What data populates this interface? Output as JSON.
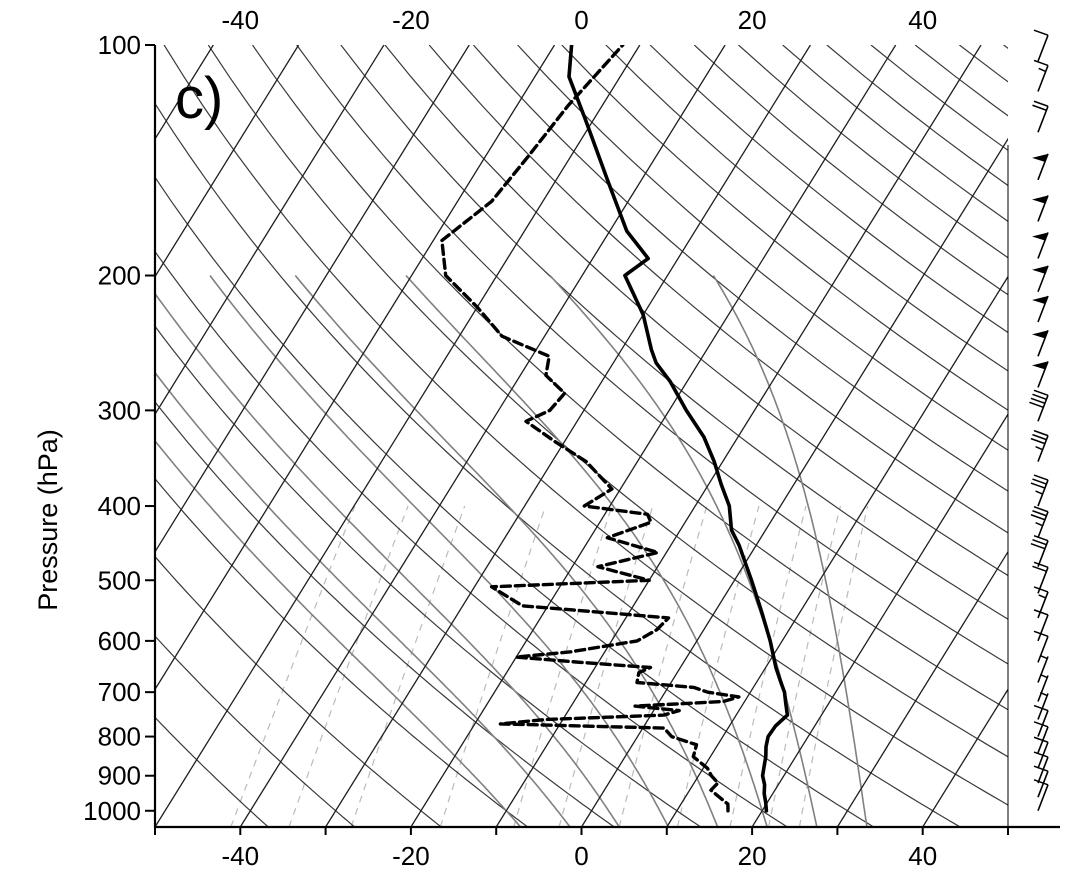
{
  "panel_label": "c)",
  "colors": {
    "temperature": "#000000",
    "dewpoint": "#000000",
    "isotherms": "#222222",
    "dry_adiabats": "#555555",
    "moist_adiabats": "#777777",
    "mixing_ratio": "#bbbbbb",
    "axes": "#000000",
    "wind_barbs": "#000000"
  },
  "chart_data": {
    "type": "line",
    "subtype": "skew-T log-P sounding",
    "title": "",
    "xlabel": "",
    "ylabel": "Pressure (hPa)",
    "xlim": [
      -50,
      50
    ],
    "ylim": [
      1050,
      100
    ],
    "yscale": "log",
    "x_ticks": [
      -40,
      -20,
      0,
      20,
      40
    ],
    "x_tick_labels": [
      "-40",
      "-20",
      "0",
      "20",
      "40"
    ],
    "y_ticks": [
      100,
      200,
      300,
      400,
      500,
      600,
      700,
      800,
      900,
      1000
    ],
    "y_tick_labels": [
      "100",
      "200",
      "300",
      "400",
      "500",
      "600",
      "700",
      "800",
      "900",
      "1000"
    ],
    "grid": true,
    "background_lines": [
      "isotherms",
      "dry adiabats",
      "moist adiabats",
      "mixing ratio lines"
    ],
    "series": [
      {
        "style": "solid",
        "points": [
          [
            1000,
            20.5
          ],
          [
            975,
            19.8
          ],
          [
            950,
            19.0
          ],
          [
            925,
            18.4
          ],
          [
            900,
            17.5
          ],
          [
            875,
            17.0
          ],
          [
            850,
            16.5
          ],
          [
            825,
            15.8
          ],
          [
            800,
            15.3
          ],
          [
            775,
            15.4
          ],
          [
            750,
            16.0
          ],
          [
            725,
            15.0
          ],
          [
            700,
            14.0
          ],
          [
            675,
            12.6
          ],
          [
            650,
            11.2
          ],
          [
            600,
            8.6
          ],
          [
            550,
            5.5
          ],
          [
            500,
            2.0
          ],
          [
            450,
            -2.0
          ],
          [
            430,
            -4.0
          ],
          [
            400,
            -6.0
          ],
          [
            375,
            -8.5
          ],
          [
            350,
            -11.0
          ],
          [
            325,
            -14.0
          ],
          [
            300,
            -18.0
          ],
          [
            275,
            -22.0
          ],
          [
            260,
            -25.0
          ],
          [
            250,
            -26.5
          ],
          [
            225,
            -30.0
          ],
          [
            200,
            -35.0
          ],
          [
            190,
            -33.5
          ],
          [
            175,
            -38.0
          ],
          [
            150,
            -44.0
          ],
          [
            125,
            -51.0
          ],
          [
            110,
            -56.0
          ],
          [
            100,
            -58.0
          ]
        ]
      },
      {
        "style": "dashed",
        "points": [
          [
            1000,
            16.0
          ],
          [
            980,
            15.5
          ],
          [
            960,
            14.0
          ],
          [
            940,
            12.5
          ],
          [
            920,
            12.8
          ],
          [
            900,
            11.5
          ],
          [
            880,
            10.5
          ],
          [
            850,
            8.0
          ],
          [
            820,
            7.5
          ],
          [
            800,
            4.0
          ],
          [
            780,
            2.5
          ],
          [
            770,
            -17.0
          ],
          [
            760,
            -12.0
          ],
          [
            750,
            1.5
          ],
          [
            740,
            3.0
          ],
          [
            730,
            -2.5
          ],
          [
            720,
            7.5
          ],
          [
            710,
            9.0
          ],
          [
            700,
            5.0
          ],
          [
            690,
            3.0
          ],
          [
            680,
            -4.0
          ],
          [
            660,
            -4.5
          ],
          [
            650,
            -3.5
          ],
          [
            640,
            -12.0
          ],
          [
            630,
            -20.0
          ],
          [
            620,
            -14.0
          ],
          [
            600,
            -7.0
          ],
          [
            580,
            -5.5
          ],
          [
            560,
            -5.0
          ],
          [
            540,
            -23.0
          ],
          [
            510,
            -28.0
          ],
          [
            500,
            -10.0
          ],
          [
            480,
            -17.0
          ],
          [
            460,
            -11.0
          ],
          [
            440,
            -18.0
          ],
          [
            420,
            -14.0
          ],
          [
            410,
            -15.0
          ],
          [
            400,
            -23.0
          ],
          [
            380,
            -21.0
          ],
          [
            350,
            -26.0
          ],
          [
            330,
            -31.0
          ],
          [
            310,
            -36.0
          ],
          [
            300,
            -34.0
          ],
          [
            285,
            -33.5
          ],
          [
            270,
            -37.0
          ],
          [
            255,
            -38.0
          ],
          [
            240,
            -45.0
          ],
          [
            220,
            -50.0
          ],
          [
            200,
            -56.0
          ],
          [
            180,
            -59.0
          ],
          [
            160,
            -56.0
          ],
          [
            140,
            -55.0
          ],
          [
            120,
            -54.0
          ],
          [
            100,
            -52.0
          ]
        ]
      }
    ],
    "wind_barbs": [
      {
        "p": 1000,
        "speed_kt": 10
      },
      {
        "p": 960,
        "speed_kt": 10
      },
      {
        "p": 920,
        "speed_kt": 10
      },
      {
        "p": 880,
        "speed_kt": 10
      },
      {
        "p": 840,
        "speed_kt": 10
      },
      {
        "p": 800,
        "speed_kt": 10
      },
      {
        "p": 760,
        "speed_kt": 5
      },
      {
        "p": 720,
        "speed_kt": 5
      },
      {
        "p": 680,
        "speed_kt": 5
      },
      {
        "p": 640,
        "speed_kt": 10
      },
      {
        "p": 600,
        "speed_kt": 10
      },
      {
        "p": 560,
        "speed_kt": 15
      },
      {
        "p": 520,
        "speed_kt": 20
      },
      {
        "p": 480,
        "speed_kt": 30
      },
      {
        "p": 440,
        "speed_kt": 35
      },
      {
        "p": 400,
        "speed_kt": 35
      },
      {
        "p": 350,
        "speed_kt": 35
      },
      {
        "p": 310,
        "speed_kt": 40
      },
      {
        "p": 280,
        "speed_kt": 50
      },
      {
        "p": 255,
        "speed_kt": 50
      },
      {
        "p": 230,
        "speed_kt": 50
      },
      {
        "p": 210,
        "speed_kt": 50
      },
      {
        "p": 190,
        "speed_kt": 50
      },
      {
        "p": 170,
        "speed_kt": 50
      },
      {
        "p": 150,
        "speed_kt": 50
      },
      {
        "p": 130,
        "speed_kt": 20
      },
      {
        "p": 115,
        "speed_kt": 15
      },
      {
        "p": 105,
        "speed_kt": 10
      }
    ]
  }
}
